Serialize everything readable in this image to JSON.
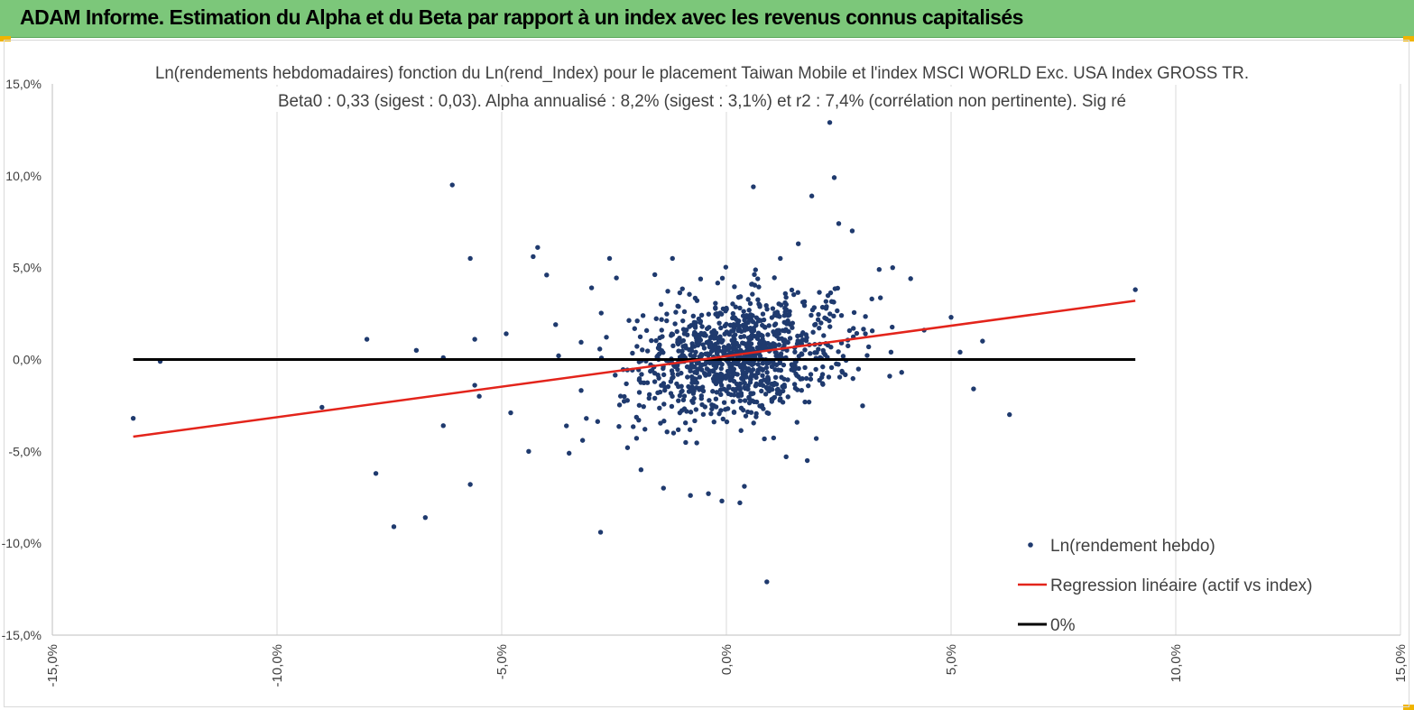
{
  "header": {
    "title": "ADAM Informe. Estimation du Alpha et du Beta par rapport à un index avec les revenus connus capitalisés"
  },
  "colors": {
    "header_bg": "#7cc77a",
    "points": "#1f3a6e",
    "regression": "#e3241b",
    "zero_line": "#000000",
    "grid": "#d9d9d9"
  },
  "chart_data": {
    "type": "scatter",
    "title_line1": "Ln(rendements hebdomadaires) fonction du Ln(rend_Index) pour le placement Taiwan Mobile  et l'index MSCI WORLD Exc. USA Index GROSS TR.",
    "title_line2": "Beta0 : 0,33 (sigest : 0,03). Alpha annualisé : 8,2% (sigest : 3,1%) et r2 : 7,4% (corrélation non pertinente). Sig ré",
    "xlim": [
      -15,
      15
    ],
    "ylim": [
      -15,
      15
    ],
    "x_ticks": [
      -15,
      -10,
      -5,
      0,
      5,
      10,
      15
    ],
    "y_ticks": [
      -15,
      -10,
      -5,
      0,
      5,
      10,
      15
    ],
    "x_tick_labels": [
      "-15,0%",
      "-10,0%",
      "-5,0%",
      "0,0%",
      "5,0%",
      "10,0%",
      "15,0%"
    ],
    "y_tick_labels": [
      "-15,0%",
      "-10,0%",
      "-5,0%",
      "0,0%",
      "5,0%",
      "10,0%",
      "15,0%"
    ],
    "grid": "vertical",
    "legend_position": "bottom-right",
    "series": [
      {
        "name": "Ln(rendement hebdo)",
        "kind": "scatter",
        "outliers": [
          [
            -13.2,
            -3.2
          ],
          [
            -12.6,
            -0.1
          ],
          [
            -9.0,
            -2.6
          ],
          [
            -8.0,
            1.1
          ],
          [
            -7.8,
            -6.2
          ],
          [
            -7.4,
            -9.1
          ],
          [
            -6.7,
            -8.6
          ],
          [
            -6.3,
            0.1
          ],
          [
            -6.3,
            -3.6
          ],
          [
            -6.1,
            9.5
          ],
          [
            -5.7,
            5.5
          ],
          [
            -5.7,
            -6.8
          ],
          [
            -5.6,
            1.1
          ],
          [
            -5.6,
            -1.4
          ],
          [
            -5.5,
            -2.0
          ],
          [
            -4.9,
            1.4
          ],
          [
            -4.8,
            -2.9
          ],
          [
            -4.4,
            -5.0
          ],
          [
            -4.3,
            5.6
          ],
          [
            -4.2,
            6.1
          ],
          [
            -4.0,
            4.6
          ],
          [
            -3.8,
            1.9
          ],
          [
            -3.5,
            -5.1
          ],
          [
            -3.0,
            3.9
          ],
          [
            -2.8,
            -9.4
          ],
          [
            -2.6,
            5.5
          ],
          [
            -2.2,
            -4.8
          ],
          [
            -1.9,
            -6.0
          ],
          [
            -1.4,
            -7.0
          ],
          [
            -1.2,
            5.5
          ],
          [
            -0.8,
            -7.4
          ],
          [
            -0.4,
            -7.3
          ],
          [
            -0.1,
            -7.7
          ],
          [
            0.3,
            -7.8
          ],
          [
            0.6,
            9.4
          ],
          [
            0.9,
            -12.1
          ],
          [
            1.2,
            5.5
          ],
          [
            1.3,
            2.8
          ],
          [
            1.6,
            6.3
          ],
          [
            1.8,
            -5.5
          ],
          [
            1.9,
            8.9
          ],
          [
            2.3,
            12.9
          ],
          [
            2.4,
            9.9
          ],
          [
            2.5,
            7.4
          ],
          [
            2.8,
            7.0
          ],
          [
            3.4,
            4.9
          ],
          [
            3.7,
            5.0
          ],
          [
            3.9,
            -0.7
          ],
          [
            4.1,
            4.4
          ],
          [
            4.4,
            1.6
          ],
          [
            5.0,
            2.3
          ],
          [
            5.2,
            0.4
          ],
          [
            5.5,
            -1.6
          ],
          [
            5.7,
            1.0
          ],
          [
            6.3,
            -3.0
          ],
          [
            9.1,
            3.8
          ],
          [
            -6.9,
            0.5
          ],
          [
            -3.2,
            -4.4
          ],
          [
            2.0,
            -4.3
          ],
          [
            0.4,
            -6.9
          ]
        ],
        "cluster": {
          "count": 1050,
          "x_mean": 0.25,
          "x_sd": 1.15,
          "y_mean": 0.15,
          "y_sd": 1.6,
          "slope": 0.33
        }
      },
      {
        "name": "Regression linéaire (actif vs index)",
        "kind": "line",
        "points": [
          [
            -13.2,
            -4.2
          ],
          [
            9.1,
            3.2
          ]
        ]
      },
      {
        "name": "0%",
        "kind": "line",
        "points": [
          [
            -13.2,
            0.0
          ],
          [
            9.1,
            0.0
          ]
        ]
      }
    ]
  }
}
